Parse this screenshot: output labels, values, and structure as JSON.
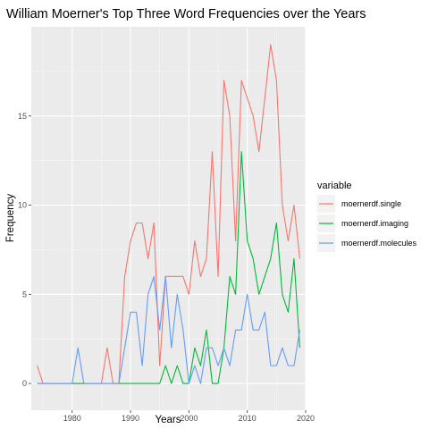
{
  "chart_data": {
    "type": "line",
    "title": "William Moerner's Top Three Word Frequencies over the Years",
    "xlabel": "Years",
    "ylabel": "Frequency",
    "xlim": [
      1973,
      2020
    ],
    "ylim": [
      -1.5,
      20
    ],
    "x_ticks": [
      1980,
      1990,
      2000,
      2010,
      2020
    ],
    "y_ticks": [
      0,
      5,
      10,
      15
    ],
    "grid": true,
    "legend": {
      "title": "variable",
      "position": "right"
    },
    "x": [
      1974,
      1975,
      1976,
      1977,
      1978,
      1979,
      1980,
      1981,
      1982,
      1983,
      1984,
      1985,
      1986,
      1987,
      1988,
      1989,
      1990,
      1991,
      1992,
      1993,
      1994,
      1995,
      1996,
      1997,
      1998,
      1999,
      2000,
      2001,
      2002,
      2003,
      2004,
      2005,
      2006,
      2007,
      2008,
      2009,
      2010,
      2011,
      2012,
      2013,
      2014,
      2015,
      2016,
      2017,
      2018,
      2019
    ],
    "series": [
      {
        "name": "moernerdf.single",
        "color": "#F8766D",
        "values": [
          1,
          0,
          0,
          0,
          0,
          0,
          0,
          0,
          0,
          0,
          0,
          0,
          2,
          0,
          0,
          6,
          8,
          9,
          9,
          7,
          9,
          1,
          6,
          6,
          6,
          6,
          5,
          8,
          6,
          7,
          13,
          6,
          17,
          15,
          8,
          17,
          16,
          15,
          13,
          16,
          19,
          17,
          10,
          8,
          10,
          7
        ]
      },
      {
        "name": "moernerdf.imaging",
        "color": "#00BA38",
        "values": [
          0,
          0,
          0,
          0,
          0,
          0,
          0,
          0,
          0,
          0,
          0,
          0,
          0,
          0,
          0,
          0,
          0,
          0,
          0,
          0,
          0,
          0,
          1,
          0,
          1,
          0,
          0,
          2,
          1,
          3,
          0,
          0,
          2,
          6,
          5,
          13,
          8,
          7,
          5,
          6,
          7,
          9,
          5,
          4,
          7,
          2
        ]
      },
      {
        "name": "moernerdf.molecules",
        "color": "#619CFF",
        "values": [
          0,
          0,
          0,
          0,
          0,
          0,
          0,
          2,
          0,
          0,
          0,
          0,
          0,
          0,
          0,
          2,
          4,
          4,
          1,
          5,
          6,
          3,
          6,
          2,
          5,
          3,
          0,
          1,
          0,
          2,
          2,
          1,
          2,
          1,
          3,
          3,
          5,
          3,
          3,
          4,
          1,
          1,
          2,
          1,
          1,
          3
        ]
      }
    ]
  }
}
